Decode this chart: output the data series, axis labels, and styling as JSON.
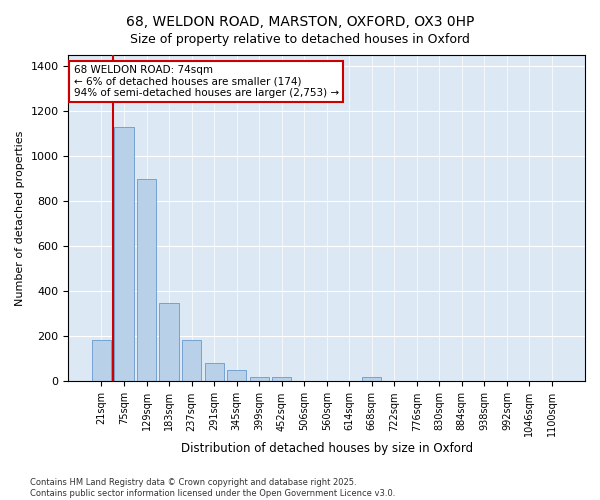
{
  "title_line1": "68, WELDON ROAD, MARSTON, OXFORD, OX3 0HP",
  "title_line2": "Size of property relative to detached houses in Oxford",
  "xlabel": "Distribution of detached houses by size in Oxford",
  "ylabel": "Number of detached properties",
  "categories": [
    "21sqm",
    "75sqm",
    "129sqm",
    "183sqm",
    "237sqm",
    "291sqm",
    "345sqm",
    "399sqm",
    "452sqm",
    "506sqm",
    "560sqm",
    "614sqm",
    "668sqm",
    "722sqm",
    "776sqm",
    "830sqm",
    "884sqm",
    "938sqm",
    "992sqm",
    "1046sqm",
    "1100sqm"
  ],
  "values": [
    183,
    1130,
    900,
    350,
    183,
    80,
    50,
    20,
    20,
    0,
    0,
    0,
    20,
    0,
    0,
    0,
    0,
    0,
    0,
    0,
    0
  ],
  "bar_color": "#b8d0e8",
  "bar_edge_color": "#6699cc",
  "red_line_x": 0.5,
  "highlight_line_color": "#cc0000",
  "annotation_text": "68 WELDON ROAD: 74sqm\n← 6% of detached houses are smaller (174)\n94% of semi-detached houses are larger (2,753) →",
  "annotation_box_color": "#ffffff",
  "annotation_box_edge": "#cc0000",
  "ylim": [
    0,
    1450
  ],
  "yticks": [
    0,
    200,
    400,
    600,
    800,
    1000,
    1200,
    1400
  ],
  "bg_color": "#dce9f5",
  "fig_bg_color": "#ffffff",
  "footnote": "Contains HM Land Registry data © Crown copyright and database right 2025.\nContains public sector information licensed under the Open Government Licence v3.0."
}
